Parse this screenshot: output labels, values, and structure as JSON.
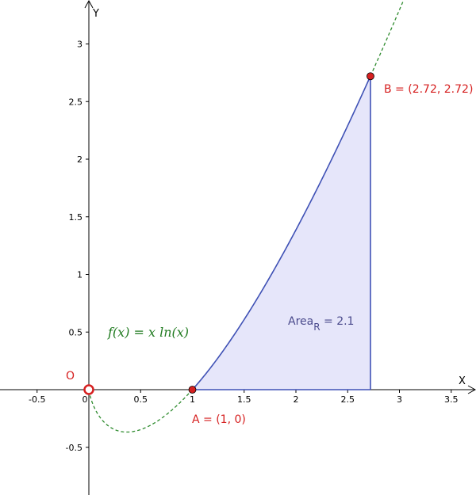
{
  "chart_data": {
    "type": "line",
    "title": "",
    "xlabel": "X",
    "ylabel": "Y",
    "xlim": [
      -0.85,
      3.75
    ],
    "ylim": [
      -0.92,
      3.38
    ],
    "x_ticks": [
      -0.5,
      0,
      0.5,
      1,
      1.5,
      2,
      2.5,
      3,
      3.5
    ],
    "y_ticks": [
      -0.5,
      0.5,
      1,
      1.5,
      2,
      2.5,
      3
    ],
    "x_tick_labels": [
      "-0.5",
      "0",
      "0.5",
      "1",
      "1.5",
      "2",
      "2.5",
      "3",
      "3.5"
    ],
    "y_tick_labels": [
      "-0.5",
      "0.5",
      "1",
      "1.5",
      "2",
      "2.5",
      "3"
    ],
    "grid": false,
    "function": {
      "label": "f(x)  =  x  ln(x)",
      "expression": "x*ln(x)",
      "dashed_color": "#2e8b2e",
      "solid_color": "#3f51b5"
    },
    "region": {
      "x_from": 1,
      "x_to": 2.72,
      "fill": "#e6e6fa",
      "label_main": "Area",
      "label_sub": "R",
      "label_value": " = 2.1",
      "value": 2.1
    },
    "points": [
      {
        "name": "O",
        "label": "O",
        "x": 0,
        "y": 0,
        "style": "ring"
      },
      {
        "name": "A",
        "label": "A = (1, 0)",
        "x": 1,
        "y": 0,
        "style": "dot"
      },
      {
        "name": "B",
        "label": "B = (2.72, 2.72)",
        "x": 2.72,
        "y": 2.72,
        "style": "dot"
      }
    ],
    "point_color": "#d62020"
  }
}
